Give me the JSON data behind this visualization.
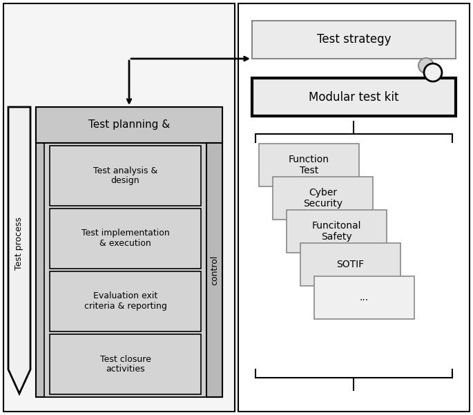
{
  "bg_color": "#ffffff",
  "gray_fill": "#c8c8c8",
  "light_gray_fill": "#d4d4d4",
  "very_light_gray": "#ebebeb",
  "left_label": "Test process",
  "control_label": "control",
  "top_box_label": "Test planning &",
  "sub_boxes": [
    "Test analysis &\ndesign",
    "Test implementation\n& execution",
    "Evaluation exit\ncriteria & reporting",
    "Test closure\nactivities"
  ],
  "right_top_label": "Test strategy",
  "right_kit_label": "Modular test kit",
  "right_modules": [
    "Function\nTest",
    "Cyber\nSecurity",
    "Funcitonal\nSafety",
    "SOTIF",
    "..."
  ]
}
